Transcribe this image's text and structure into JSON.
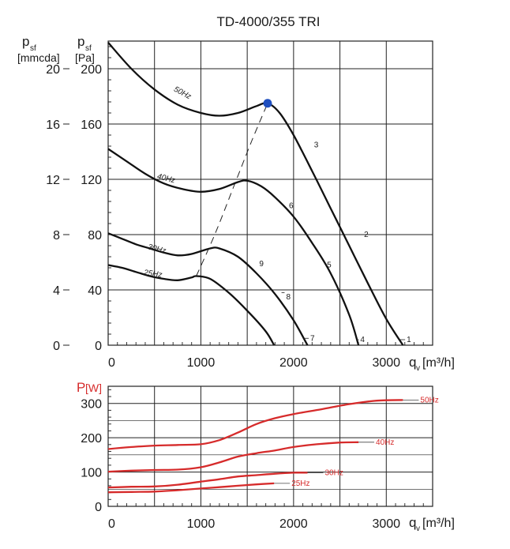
{
  "chart_data": [
    {
      "type": "line",
      "title": "TD-4000/355 TRI",
      "y_label_left_symbol": "p",
      "y_label_left_sub": "sf",
      "y_label_left_unit": "[mmcda]",
      "y_label_right_symbol": "p",
      "y_label_right_sub": "sf",
      "y_label_right_unit": "[Pa]",
      "x_label_symbol": "q",
      "x_label_sub": "v",
      "x_label_unit": "[m³/h]",
      "xlim": [
        0,
        3500
      ],
      "ylim": [
        0,
        220
      ],
      "x_ticks": [
        "0",
        "1000",
        "2000",
        "3000"
      ],
      "y_ticks_pa": [
        "0",
        "40",
        "80",
        "120",
        "160",
        "200"
      ],
      "y_ticks_mmcda": [
        "0",
        "4",
        "8",
        "12",
        "16",
        "20"
      ],
      "grid": true,
      "series": [
        {
          "name": "50Hz",
          "x": [
            0,
            250,
            500,
            750,
            1000,
            1200,
            1400,
            1600,
            1720,
            1850,
            2000,
            2200,
            2400,
            2600,
            2800,
            3000,
            3180
          ],
          "y": [
            219,
            200,
            185,
            174,
            168,
            166,
            168,
            173,
            175,
            168,
            152,
            126,
            99,
            72,
            45,
            19,
            0
          ]
        },
        {
          "name": "40Hz",
          "x": [
            0,
            200,
            400,
            600,
            800,
            1000,
            1200,
            1400,
            1500,
            1650,
            1800,
            2000,
            2200,
            2400,
            2600,
            2700
          ],
          "y": [
            142,
            133,
            124,
            117,
            113,
            111,
            113,
            118,
            119,
            115,
            107,
            93,
            74,
            52,
            22,
            0
          ]
        },
        {
          "name": "30Hz",
          "x": [
            0,
            150,
            300,
            450,
            600,
            750,
            900,
            1100,
            1200,
            1400,
            1600,
            1800,
            2000,
            2150
          ],
          "y": [
            81,
            77,
            73,
            70,
            67,
            65,
            66,
            70,
            70,
            64,
            52,
            37,
            18,
            0
          ]
        },
        {
          "name": "25Hz",
          "x": [
            0,
            150,
            300,
            450,
            600,
            750,
            900,
            950,
            1100,
            1300,
            1500,
            1700,
            1790
          ],
          "y": [
            58,
            56,
            53,
            50,
            48,
            47,
            49,
            50,
            48,
            38,
            25,
            10,
            0
          ]
        }
      ],
      "operating_point": {
        "x": 1720,
        "y": 175
      },
      "system_curve": {
        "x": [
          950,
          1150,
          1350,
          1550,
          1720
        ],
        "y": [
          50,
          80,
          114,
          148,
          175
        ]
      },
      "curve_point_labels": [
        "1",
        "2",
        "3",
        "4",
        "5",
        "6",
        "7",
        "8",
        "9"
      ]
    },
    {
      "type": "line",
      "y_label": "P",
      "y_label_unit": "[W]",
      "x_label_symbol": "q",
      "x_label_sub": "v",
      "x_label_unit": "[m³/h]",
      "xlim": [
        0,
        3500
      ],
      "ylim": [
        0,
        350
      ],
      "x_ticks": [
        "0",
        "1000",
        "2000",
        "3000"
      ],
      "y_ticks": [
        "0",
        "100",
        "200",
        "300"
      ],
      "grid": true,
      "color": "#d62b2b",
      "series": [
        {
          "name": "50Hz",
          "x": [
            0,
            250,
            500,
            750,
            1000,
            1200,
            1400,
            1600,
            1800,
            2000,
            2300,
            2600,
            2900,
            3180
          ],
          "y": [
            167,
            173,
            177,
            179,
            181,
            193,
            215,
            240,
            257,
            269,
            283,
            298,
            308,
            310
          ]
        },
        {
          "name": "40Hz",
          "x": [
            0,
            250,
            500,
            750,
            1000,
            1200,
            1400,
            1600,
            1800,
            2000,
            2250,
            2500,
            2700
          ],
          "y": [
            101,
            104,
            106,
            107,
            114,
            128,
            145,
            155,
            163,
            173,
            181,
            186,
            187
          ]
        },
        {
          "name": "30Hz",
          "x": [
            0,
            250,
            500,
            750,
            1000,
            1200,
            1400,
            1600,
            1800,
            2000,
            2150
          ],
          "y": [
            55,
            57,
            58,
            63,
            72,
            79,
            87,
            91,
            95,
            98,
            98
          ]
        },
        {
          "name": "25Hz",
          "x": [
            0,
            250,
            500,
            750,
            1000,
            1200,
            1400,
            1600,
            1790
          ],
          "y": [
            41,
            42,
            43,
            47,
            52,
            56,
            60,
            64,
            67
          ]
        }
      ]
    }
  ]
}
